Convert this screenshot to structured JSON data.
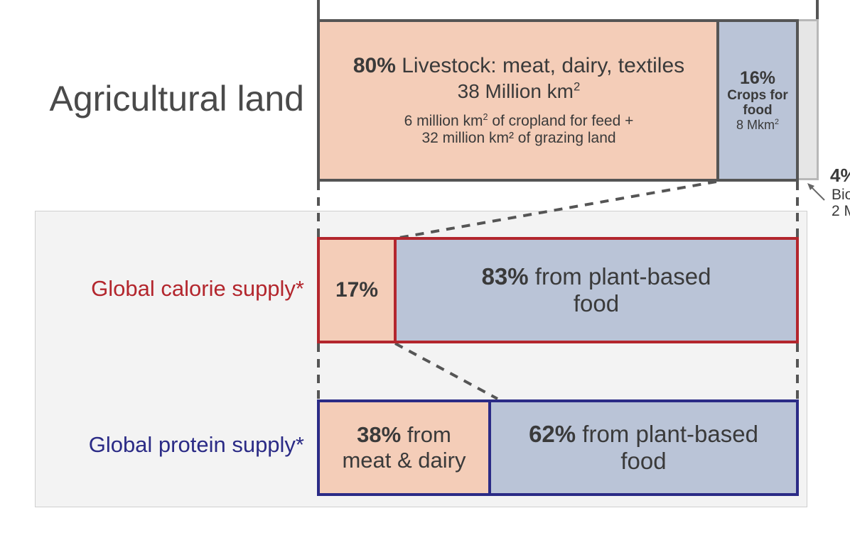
{
  "agri": {
    "title": "Agricultural land",
    "livestock": {
      "pct": "80%",
      "label": " Livestock: meat, dairy, textiles",
      "area_main": "38 Million km",
      "area_sup": "2",
      "detail_line1_a": "6 million km",
      "detail_line1_sup": "2",
      "detail_line1_b": " of cropland for feed +",
      "detail_line2": "32 million km² of grazing land"
    },
    "crops": {
      "pct": "16%",
      "label_line1": "Crops for",
      "label_line2": "food",
      "area": "8 Mkm",
      "area_sup": "2"
    },
    "biofuel": {
      "pct": "4%",
      "label": "Bio",
      "area": "2 M"
    }
  },
  "calorie": {
    "label": "Global calorie supply*",
    "animal_pct": "17%",
    "plant_pct": "83%",
    "plant_text_line1": " from plant-based",
    "plant_text_line2": "food"
  },
  "protein": {
    "label": "Global protein supply*",
    "animal_pct": "38%",
    "animal_text_line1": " from",
    "animal_text_line2": "meat & dairy",
    "plant_pct": "62%",
    "plant_text_line1": " from plant-based",
    "plant_text_line2": "food"
  },
  "colors": {
    "animal_fill": "#f4cdb8",
    "plant_fill": "#bac4d7",
    "biofuel_fill": "#e6e6e6",
    "land_border": "#555555",
    "calorie_border": "#b3262d",
    "protein_border": "#2b2b86",
    "calorie_label": "#b3262d",
    "protein_label": "#2b2b86"
  }
}
